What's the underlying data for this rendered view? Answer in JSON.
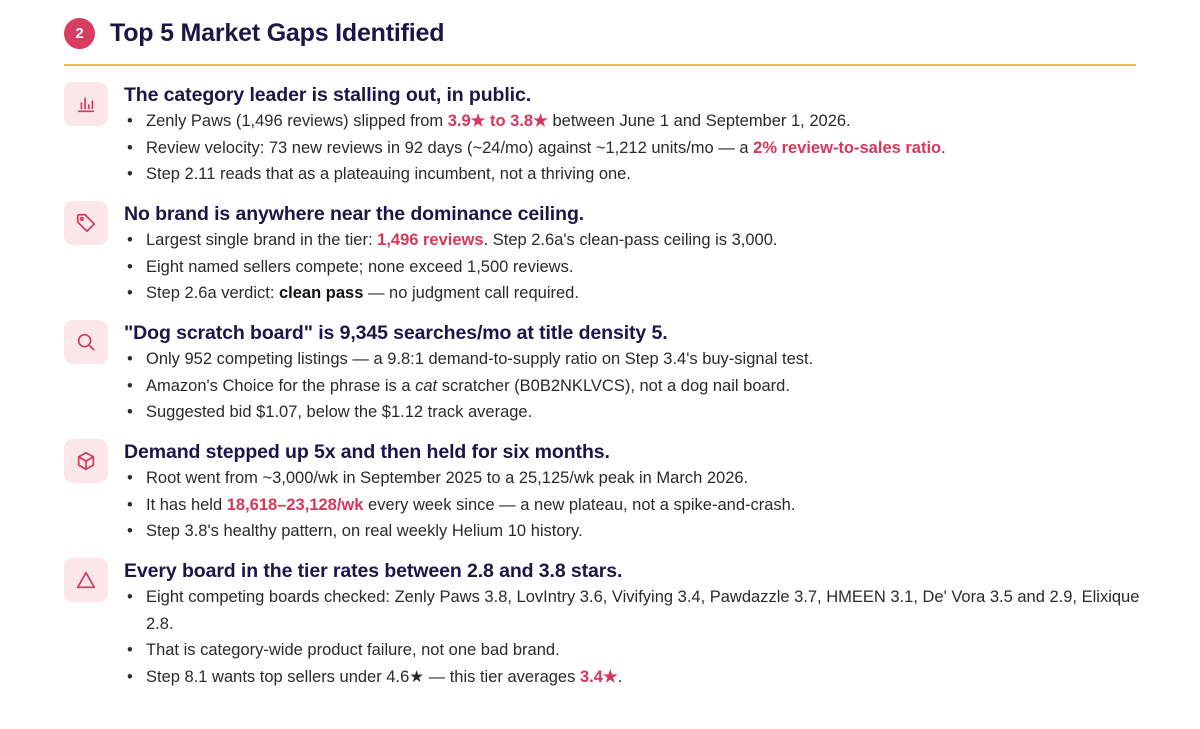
{
  "header": {
    "number": "2",
    "title": "Top 5 Market Gaps Identified"
  },
  "colors": {
    "accent": "#d8365a",
    "navy": "#1c1548",
    "rule": "#efbf4a",
    "icon_bg": "#fbe6ea"
  },
  "sections": [
    {
      "icon": "bar-chart-icon",
      "title": "The category leader is stalling out, in public.",
      "bullets": [
        {
          "a": "Zenly Paws (1,496 reviews) slipped from ",
          "hl": "3.9★ to 3.8★",
          "c": " between June 1 and September 1, 2026."
        },
        {
          "a": "Review velocity: 73 new reviews in 92 days (~24/mo) against ~1,212 units/mo — a ",
          "hl": "2% review-to-sales ratio",
          "c": "."
        },
        {
          "a": "Step 2.11 reads that as a plateauing incumbent, not a thriving one."
        }
      ]
    },
    {
      "icon": "tag-icon",
      "title": "No brand is anywhere near the dominance ceiling.",
      "bullets": [
        {
          "a": "Largest single brand in the tier: ",
          "hl": "1,496 reviews",
          "c": ". Step 2.6a's clean-pass ceiling is 3,000."
        },
        {
          "a": "Eight named sellers compete; none exceed 1,500 reviews."
        },
        {
          "a": "Step 2.6a verdict: ",
          "b": "clean pass",
          "c": " — no judgment call required."
        }
      ]
    },
    {
      "icon": "search-icon",
      "title": "\"Dog scratch board\" is 9,345 searches/mo at title density 5.",
      "bullets": [
        {
          "a": "Only 952 competing listings — a 9.8:1 demand-to-supply ratio on Step 3.4's buy-signal test."
        },
        {
          "a": "Amazon's Choice for the phrase is a ",
          "i": "cat",
          "c": " scratcher (B0B2NKLVCS), not a dog nail board."
        },
        {
          "a": "Suggested bid $1.07, below the $1.12 track average."
        }
      ]
    },
    {
      "icon": "box-icon",
      "title": "Demand stepped up 5x and then held for six months.",
      "bullets": [
        {
          "a": "Root went from ~3,000/wk in September 2025 to a 25,125/wk peak in March 2026."
        },
        {
          "a": "It has held ",
          "hl": "18,618–23,128/wk",
          "c": " every week since — a new plateau, not a spike-and-crash."
        },
        {
          "a": "Step 3.8's healthy pattern, on real weekly Helium 10 history."
        }
      ]
    },
    {
      "icon": "warning-triangle-icon",
      "title": "Every board in the tier rates between 2.8 and 3.8 stars.",
      "bullets": [
        {
          "a": "Eight competing boards checked: Zenly Paws 3.8, LovIntry 3.6, Vivifying 3.4, Pawdazzle 3.7, HMEEN 3.1, De' Vora 3.5 and 2.9, Elixique 2.8."
        },
        {
          "a": "That is category-wide product failure, not one bad brand."
        },
        {
          "a": "Step 8.1 wants top sellers under 4.6★ — this tier averages ",
          "hl": "3.4★",
          "c": "."
        }
      ]
    }
  ]
}
